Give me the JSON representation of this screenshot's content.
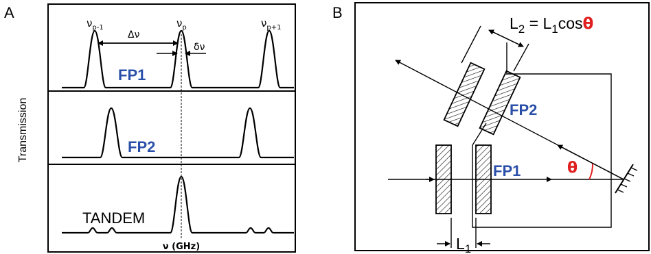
{
  "panel_a": {
    "letter": "A",
    "labels": {
      "nu_pm1": "ν",
      "nu_pm1_sub": "p-1",
      "nu_p": "ν",
      "nu_p_sub": "p",
      "nu_pp1": "ν",
      "nu_pp1_sub": "p+1",
      "delta_nu": "Δν",
      "small_delta_nu": "δν",
      "fp1": "FP1",
      "fp2": "FP2",
      "tandem": "TANDEM",
      "y_axis": "Transmission",
      "x_axis": "ν (GHz)"
    }
  },
  "panel_b": {
    "letter": "B",
    "labels": {
      "l2_eq": "L",
      "l2_sub": "2",
      "l2_rhs": " = L",
      "l2_rhs_sub": "1",
      "cos": "cos",
      "theta_top": "θ",
      "fp2": "FP2",
      "fp1": "FP1",
      "theta": "θ",
      "l1": "L",
      "l1_sub": "1"
    }
  },
  "colors": {
    "label_blue": "#2a4fa8",
    "theta_red": "#e02020",
    "hatch": "#000000"
  }
}
